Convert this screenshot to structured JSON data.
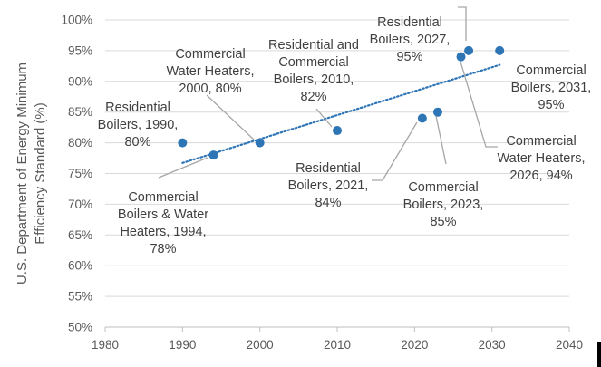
{
  "chart_data": {
    "type": "scatter",
    "title": "",
    "xlabel": "",
    "ylabel_lines": [
      "U.S. Department of Energy Minimum",
      "Efficiency Standard (%)"
    ],
    "xlim": [
      1980,
      2040
    ],
    "ylim": [
      50,
      100
    ],
    "x_ticks": [
      1980,
      1990,
      2000,
      2010,
      2020,
      2030,
      2040
    ],
    "y_ticks": [
      50,
      55,
      60,
      65,
      70,
      75,
      80,
      85,
      90,
      95,
      100
    ],
    "y_tick_suffix": "%",
    "grid": "horizontal",
    "trendline": {
      "style": "dotted",
      "type": "linear",
      "x_range": [
        1990,
        2031
      ]
    },
    "marker_color": "#2E75B6",
    "trend_color": "#2E75B6",
    "grid_color": "#D9D9D9",
    "points": [
      {
        "id": "res-boilers-1990",
        "x": 1990,
        "y": 80,
        "label": [
          "Residential",
          "Boilers, 1990,",
          "80%"
        ]
      },
      {
        "id": "com-boilers-water-1994",
        "x": 1994,
        "y": 78,
        "label": [
          "Commercial",
          "Boilers & Water",
          "Heaters, 1994,",
          "78%"
        ]
      },
      {
        "id": "com-water-2000",
        "x": 2000,
        "y": 80,
        "label": [
          "Commercial",
          "Water Heaters,",
          "2000, 80%"
        ]
      },
      {
        "id": "res-com-boilers-2010",
        "x": 2010,
        "y": 82,
        "label": [
          "Residential and",
          "Commercial",
          "Boilers, 2010,",
          "82%"
        ]
      },
      {
        "id": "res-boilers-2021",
        "x": 2021,
        "y": 84,
        "label": [
          "Residential",
          "Boilers, 2021,",
          "84%"
        ]
      },
      {
        "id": "com-boilers-2023",
        "x": 2023,
        "y": 85,
        "label": [
          "Commercial",
          "Boilers, 2023,",
          "85%"
        ]
      },
      {
        "id": "com-water-2026",
        "x": 2026,
        "y": 94,
        "label": [
          "Commercial",
          "Water Heaters,",
          "2026, 94%"
        ]
      },
      {
        "id": "res-boilers-2027",
        "x": 2027,
        "y": 95,
        "label": [
          "Residential",
          "Boilers, 2027,",
          "95%"
        ]
      },
      {
        "id": "com-boilers-2031",
        "x": 2031,
        "y": 95,
        "label": [
          "Commercial",
          "Boilers, 2031,",
          "95%"
        ]
      }
    ]
  }
}
